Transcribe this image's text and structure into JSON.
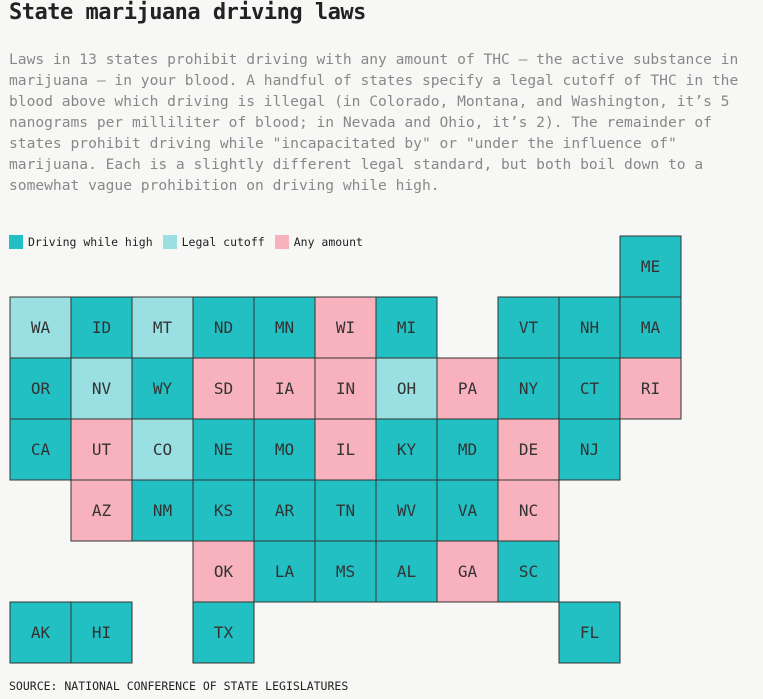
{
  "title": "State marijuana driving laws",
  "description": "Laws in 13 states prohibit driving with any amount of THC — the active substance in marijuana — in your blood. A handful of states specify a legal cutoff of THC in the blood above which driving is illegal (in Colorado, Montana, and Washington, it’s 5 nanograms per milliliter of blood; in Nevada and Ohio, it’s 2). The remainder of states prohibit driving while \"incapacitated by\" or \"under the influence of\" marijuana. Each is a slightly different legal standard, but both boil down to a somewhat vague prohibition on driving while high.",
  "legend": [
    {
      "label": "Driving while high",
      "color": "#22bfc3"
    },
    {
      "label": "Legal cutoff",
      "color": "#9adfe1"
    },
    {
      "label": "Any amount",
      "color": "#f7b2bd"
    }
  ],
  "grid": {
    "rows": [
      [
        null,
        null,
        null,
        null,
        null,
        null,
        null,
        null,
        null,
        null,
        {
          "state": "ME",
          "law": 0
        }
      ],
      [
        {
          "state": "WA",
          "law": 1
        },
        {
          "state": "ID",
          "law": 0
        },
        {
          "state": "MT",
          "law": 1
        },
        {
          "state": "ND",
          "law": 0
        },
        {
          "state": "MN",
          "law": 0
        },
        {
          "state": "WI",
          "law": 2
        },
        {
          "state": "MI",
          "law": 0
        },
        null,
        {
          "state": "VT",
          "law": 0
        },
        {
          "state": "NH",
          "law": 0
        },
        {
          "state": "MA",
          "law": 0
        }
      ],
      [
        {
          "state": "OR",
          "law": 0
        },
        {
          "state": "NV",
          "law": 1
        },
        {
          "state": "WY",
          "law": 0
        },
        {
          "state": "SD",
          "law": 2
        },
        {
          "state": "IA",
          "law": 2
        },
        {
          "state": "IN",
          "law": 2
        },
        {
          "state": "OH",
          "law": 1
        },
        {
          "state": "PA",
          "law": 2
        },
        {
          "state": "NY",
          "law": 0
        },
        {
          "state": "CT",
          "law": 0
        },
        {
          "state": "RI",
          "law": 2
        }
      ],
      [
        {
          "state": "CA",
          "law": 0
        },
        {
          "state": "UT",
          "law": 2
        },
        {
          "state": "CO",
          "law": 1
        },
        {
          "state": "NE",
          "law": 0
        },
        {
          "state": "MO",
          "law": 0
        },
        {
          "state": "IL",
          "law": 2
        },
        {
          "state": "KY",
          "law": 0
        },
        {
          "state": "MD",
          "law": 0
        },
        {
          "state": "DE",
          "law": 2
        },
        {
          "state": "NJ",
          "law": 0
        },
        null
      ],
      [
        null,
        {
          "state": "AZ",
          "law": 2
        },
        {
          "state": "NM",
          "law": 0
        },
        {
          "state": "KS",
          "law": 0
        },
        {
          "state": "AR",
          "law": 0
        },
        {
          "state": "TN",
          "law": 0
        },
        {
          "state": "WV",
          "law": 0
        },
        {
          "state": "VA",
          "law": 0
        },
        {
          "state": "NC",
          "law": 2
        },
        null,
        null
      ],
      [
        null,
        null,
        null,
        {
          "state": "OK",
          "law": 2
        },
        {
          "state": "LA",
          "law": 0
        },
        {
          "state": "MS",
          "law": 0
        },
        {
          "state": "AL",
          "law": 0
        },
        {
          "state": "GA",
          "law": 2
        },
        {
          "state": "SC",
          "law": 0
        },
        null,
        null
      ],
      [
        {
          "state": "AK",
          "law": 0
        },
        {
          "state": "HI",
          "law": 0
        },
        null,
        {
          "state": "TX",
          "law": 0
        },
        null,
        null,
        null,
        null,
        null,
        {
          "state": "FL",
          "law": 0
        },
        null
      ]
    ]
  },
  "source": "SOURCE: NATIONAL CONFERENCE OF STATE LEGISLATURES"
}
